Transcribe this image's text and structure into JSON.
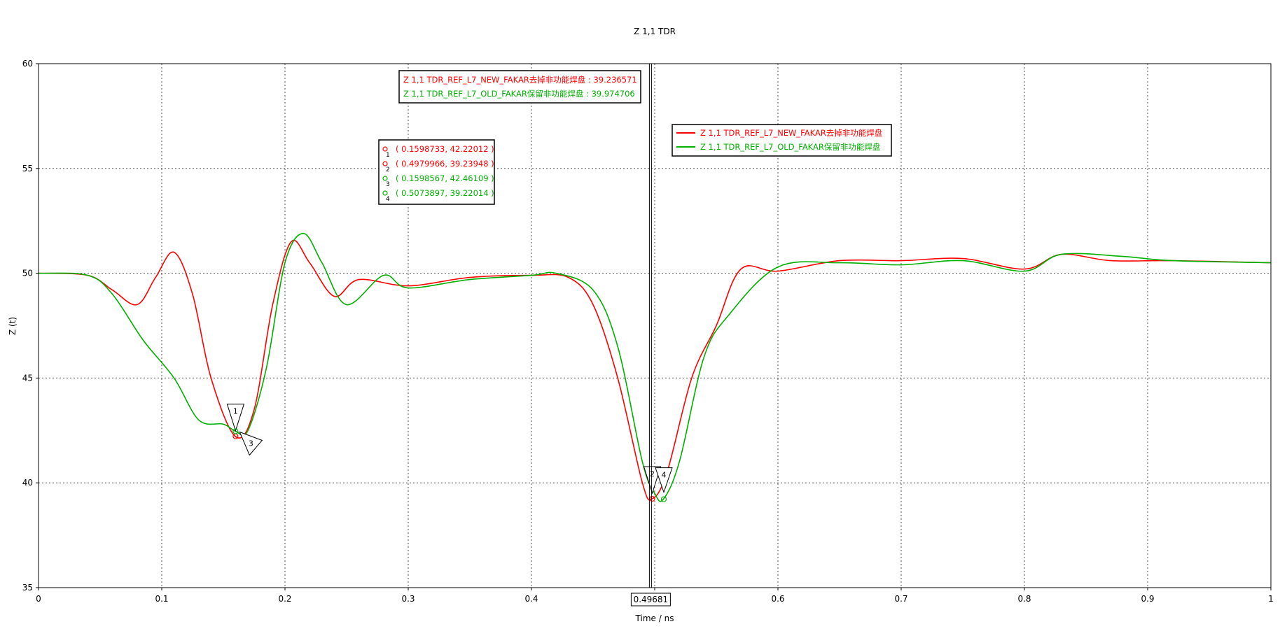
{
  "chart_data": {
    "type": "line",
    "title": "Z 1,1 TDR",
    "xlabel": "Time / ns",
    "ylabel": "Z (t)",
    "xlim": [
      0,
      1
    ],
    "ylim": [
      35,
      60
    ],
    "xticks": [
      "0",
      "0.1",
      "0.2",
      "0.3",
      "0.4",
      "0.5",
      "0.6",
      "0.7",
      "0.8",
      "0.9",
      "1"
    ],
    "yticks": [
      "35",
      "40",
      "45",
      "50",
      "55",
      "60"
    ],
    "grid": true,
    "legend": "top-center",
    "series": [
      {
        "name": "Z 1,1 TDR_REF_L7_NEW_FAKAR去掉非功能焊盘",
        "color": "#ff0000",
        "x": [
          0,
          0.04,
          0.06,
          0.08,
          0.095,
          0.11,
          0.125,
          0.14,
          0.16,
          0.175,
          0.19,
          0.205,
          0.22,
          0.24,
          0.26,
          0.3,
          0.35,
          0.4,
          0.43,
          0.45,
          0.47,
          0.49,
          0.498,
          0.51,
          0.53,
          0.55,
          0.57,
          0.6,
          0.65,
          0.7,
          0.75,
          0.8,
          0.83,
          0.87,
          0.92,
          1
        ],
        "y": [
          50,
          49.9,
          49.2,
          48.5,
          49.8,
          51.0,
          49.0,
          45.0,
          42.2,
          43.5,
          48.5,
          51.5,
          50.5,
          48.9,
          49.7,
          49.4,
          49.8,
          49.9,
          49.8,
          48.5,
          45.0,
          40.0,
          39.24,
          40.5,
          45.0,
          47.5,
          50.2,
          50.1,
          50.6,
          50.6,
          50.7,
          50.2,
          50.9,
          50.6,
          50.6,
          50.5
        ]
      },
      {
        "name": "Z 1,1 TDR_REF_L7_OLD_FAKAR保留非功能焊盘",
        "color": "#00b000",
        "x": [
          0,
          0.04,
          0.06,
          0.085,
          0.11,
          0.13,
          0.15,
          0.16,
          0.17,
          0.185,
          0.2,
          0.215,
          0.23,
          0.25,
          0.28,
          0.3,
          0.35,
          0.4,
          0.42,
          0.45,
          0.47,
          0.49,
          0.5,
          0.507,
          0.52,
          0.54,
          0.56,
          0.6,
          0.65,
          0.7,
          0.75,
          0.8,
          0.83,
          0.88,
          0.92,
          1
        ],
        "y": [
          50,
          49.9,
          49.0,
          46.8,
          45.0,
          43.0,
          42.8,
          42.46,
          42.5,
          45.5,
          50.5,
          51.9,
          50.5,
          48.5,
          49.9,
          49.3,
          49.7,
          49.9,
          50.0,
          49.2,
          46.5,
          41.0,
          39.5,
          39.22,
          41.0,
          46.0,
          48.0,
          50.3,
          50.5,
          50.4,
          50.6,
          50.1,
          50.9,
          50.8,
          50.6,
          50.5
        ]
      }
    ],
    "markers": [
      {
        "id": "1",
        "x": 0.1598733,
        "y": 42.22012,
        "label": "( 0.1598733, 42.22012 )",
        "color": "#ff0000"
      },
      {
        "id": "2",
        "x": 0.4979966,
        "y": 39.23948,
        "label": "( 0.4979966, 39.23948 )",
        "color": "#ff0000"
      },
      {
        "id": "3",
        "x": 0.1598567,
        "y": 42.46109,
        "label": "( 0.1598567, 42.46109 )",
        "color": "#00b000"
      },
      {
        "id": "4",
        "x": 0.5073897,
        "y": 39.22014,
        "label": "( 0.5073897, 39.22014 )",
        "color": "#00b000"
      }
    ],
    "cursor": {
      "x": 0.49681,
      "label": "0.49681",
      "readouts": [
        {
          "text": "Z 1,1 TDR_REF_L7_NEW_FAKAR去掉非功能焊盘 : 39.236571",
          "color": "#ff0000"
        },
        {
          "text": "Z 1,1 TDR_REF_L7_OLD_FAKAR保留非功能焊盘 : 39.974706",
          "color": "#00b000"
        }
      ]
    }
  }
}
